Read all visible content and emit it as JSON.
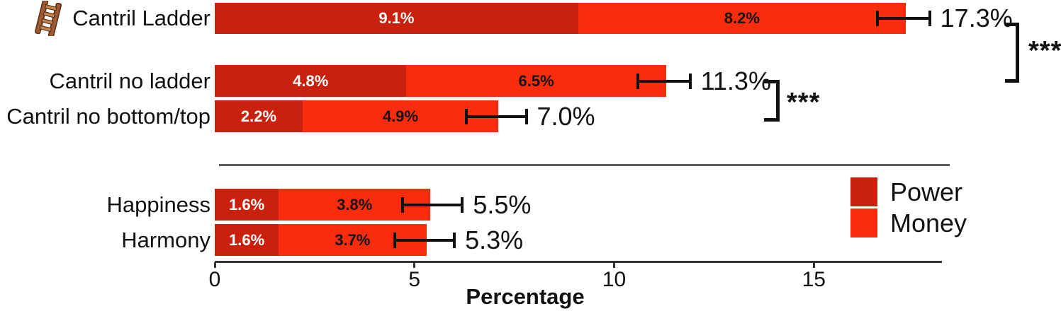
{
  "chart_data": {
    "type": "bar",
    "orientation": "horizontal",
    "stacked": true,
    "title": "",
    "xlabel": "Percentage",
    "ylabel": "",
    "xlim": [
      0,
      18.2
    ],
    "x_ticks": [
      "0",
      "5",
      "10",
      "15"
    ],
    "x_tick_values": [
      0,
      5,
      10,
      15
    ],
    "grid": false,
    "legend_position": "right-middle",
    "series": [
      {
        "name": "Power",
        "color": "#C9210E",
        "label_color": "#ffffff"
      },
      {
        "name": "Money",
        "color": "#FB2C0D",
        "label_color": "#141414"
      }
    ],
    "rows": [
      {
        "label": "Cantril Ladder",
        "icon": "ladder-icon",
        "group": 1,
        "power": 9.1,
        "money": 8.2,
        "power_label": "9.1%",
        "money_label": "8.2%",
        "total_label": "17.3%",
        "ci": [
          16.6,
          17.9
        ]
      },
      {
        "label": "Cantril no ladder",
        "icon": null,
        "group": 1,
        "power": 4.8,
        "money": 6.5,
        "power_label": "4.8%",
        "money_label": "6.5%",
        "total_label": "11.3%",
        "ci": [
          10.6,
          11.9
        ]
      },
      {
        "label": "Cantril no bottom/top",
        "icon": null,
        "group": 1,
        "power": 2.2,
        "money": 4.9,
        "power_label": "2.2%",
        "money_label": "4.9%",
        "total_label": "7.0%",
        "ci": [
          6.3,
          7.8
        ]
      },
      {
        "label": "Happiness",
        "icon": null,
        "group": 2,
        "power": 1.6,
        "money": 3.8,
        "power_label": "1.6%",
        "money_label": "3.8%",
        "total_label": "5.5%",
        "ci": [
          4.7,
          6.2
        ]
      },
      {
        "label": "Harmony",
        "icon": null,
        "group": 2,
        "power": 1.6,
        "money": 3.7,
        "power_label": "1.6%",
        "money_label": "3.7%",
        "total_label": "5.3%",
        "ci": [
          4.5,
          6.0
        ]
      }
    ],
    "significance": [
      {
        "label": "***",
        "between": [
          "Cantril Ladder",
          "Cantril no ladder"
        ]
      },
      {
        "label": "***",
        "between": [
          "Cantril no ladder",
          "Cantril no bottom/top"
        ]
      }
    ]
  }
}
